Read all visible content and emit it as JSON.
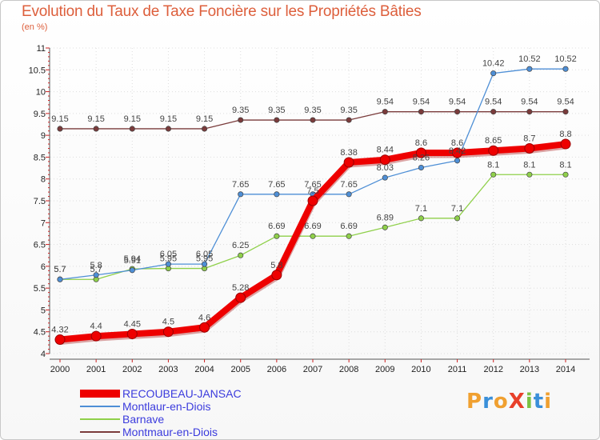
{
  "title": "Evolution du Taux de Taxe Foncière sur les Propriétés Bâties",
  "subtitle": "(en %)",
  "logo": {
    "text": "ProXiti",
    "letters": [
      "P",
      "r",
      "o",
      "X",
      "i",
      "t",
      "i"
    ],
    "colors": [
      "#f0a030",
      "#3a8fd9",
      "#f0a030",
      "#e8402a",
      "#7ac142",
      "#3a8fd9",
      "#f0a030"
    ]
  },
  "chart_data": {
    "type": "line",
    "title": "Evolution du Taux de Taxe Foncière sur les Propriétés Bâties",
    "ylabel": "(en %)",
    "xlabel": "",
    "x": [
      "2000",
      "2001",
      "2002",
      "2003",
      "2004",
      "2005",
      "2006",
      "2007",
      "2008",
      "2009",
      "2010",
      "2011",
      "2012",
      "2013",
      "2014"
    ],
    "ylim": [
      4,
      11
    ],
    "yticks": [
      "4",
      "4.5",
      "5",
      "5.5",
      "6",
      "6.5",
      "7",
      "7.5",
      "8",
      "8.5",
      "9",
      "9.5",
      "10",
      "10.5",
      "11"
    ],
    "legend_position": "bottom-left",
    "series": [
      {
        "name": "RECOUBEAU-JANSAC",
        "color": "#ee0000",
        "width": "thick",
        "values": [
          4.32,
          4.4,
          4.45,
          4.5,
          4.6,
          5.28,
          5.8,
          7.5,
          8.38,
          8.44,
          8.6,
          8.6,
          8.65,
          8.7,
          8.8
        ],
        "labels": [
          "4.32",
          "4.4",
          "4.45",
          "4.5",
          "4.6",
          "5.28",
          "5.8",
          "7.5",
          "8.38",
          "8.44",
          "8.6",
          "8.6",
          "8.65",
          "8.7",
          "8.8"
        ]
      },
      {
        "name": "Montlaur-en-Diois",
        "color": "#4e8fd6",
        "width": "thin",
        "values": [
          5.7,
          5.8,
          5.91,
          6.05,
          6.05,
          7.65,
          7.65,
          7.65,
          7.65,
          8.03,
          8.26,
          8.42,
          10.42,
          10.52,
          10.52
        ],
        "labels": [
          "5.7",
          "5.8",
          "5.91",
          "6.05",
          "6.05",
          "7.65",
          "7.65",
          "7.65",
          "7.65",
          "8.03",
          "8.26",
          "8.42",
          "10.42",
          "10.52",
          "10.52"
        ]
      },
      {
        "name": "Barnave",
        "color": "#8fd04a",
        "width": "thin",
        "values": [
          5.7,
          5.7,
          5.94,
          5.95,
          5.95,
          6.25,
          6.69,
          6.69,
          6.69,
          6.89,
          7.1,
          7.1,
          8.1,
          8.1,
          8.1
        ],
        "labels": [
          "5.7",
          "5.7",
          "5.94",
          "5.95",
          "5.95",
          "6.25",
          "6.69",
          "6.69",
          "6.69",
          "6.89",
          "7.1",
          "7.1",
          "8.1",
          "8.1",
          "8.1"
        ]
      },
      {
        "name": "Montmaur-en-Diois",
        "color": "#7a3b3b",
        "width": "thin",
        "values": [
          9.15,
          9.15,
          9.15,
          9.15,
          9.15,
          9.35,
          9.35,
          9.35,
          9.35,
          9.54,
          9.54,
          9.54,
          9.54,
          9.54,
          9.54
        ],
        "labels": [
          "9.15",
          "9.15",
          "9.15",
          "9.15",
          "9.15",
          "9.35",
          "9.35",
          "9.35",
          "9.35",
          "9.54",
          "9.54",
          "9.54",
          "9.54",
          "9.54",
          "9.54"
        ]
      }
    ]
  }
}
